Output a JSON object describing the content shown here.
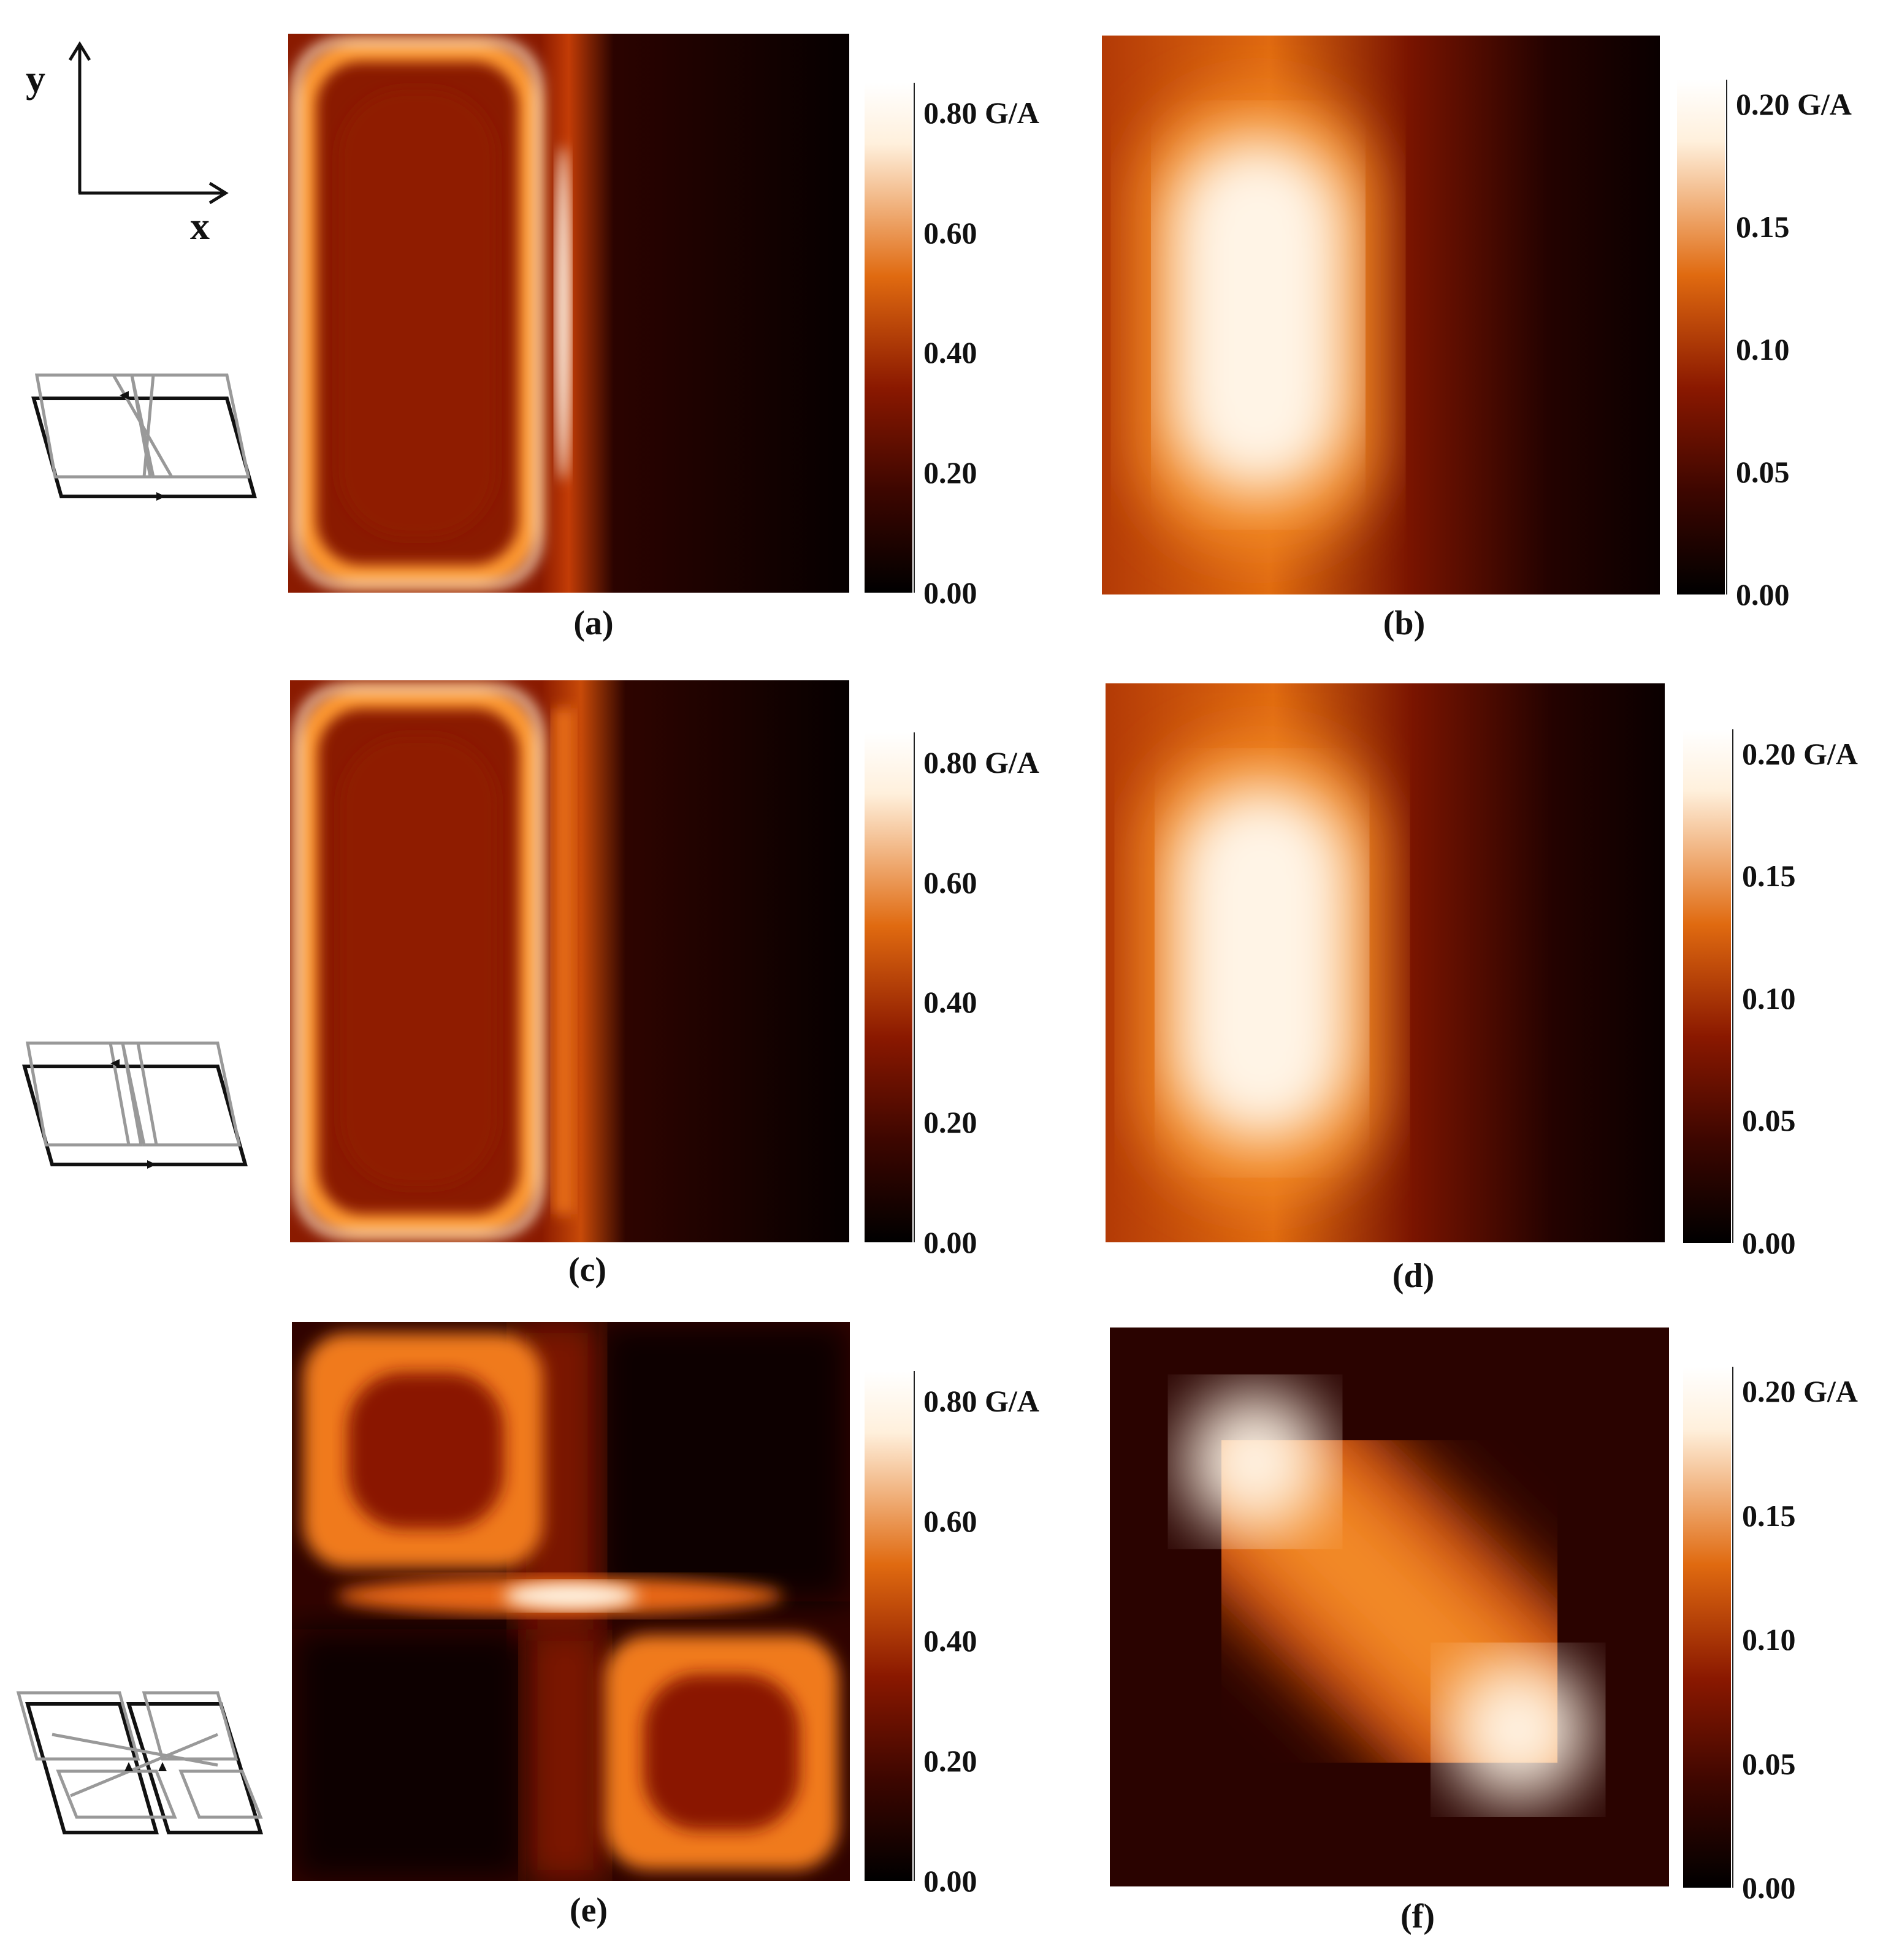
{
  "axes": {
    "x_label": "x",
    "y_label": "y"
  },
  "colorbar_left": {
    "ticks": [
      "0.00",
      "0.20",
      "0.40",
      "0.60",
      "0.80 G/A"
    ],
    "values": [
      0.0,
      0.2,
      0.4,
      0.6,
      0.8
    ],
    "max": 0.85
  },
  "colorbar_right": {
    "ticks": [
      "0.00",
      "0.05",
      "0.10",
      "0.15",
      "0.20 G/A"
    ],
    "values": [
      0.0,
      0.05,
      0.1,
      0.15,
      0.2
    ],
    "max": 0.21
  },
  "panels": [
    {
      "label": "(a)"
    },
    {
      "label": "(b)"
    },
    {
      "label": "(c)"
    },
    {
      "label": "(d)"
    },
    {
      "label": "(e)"
    },
    {
      "label": "(f)"
    }
  ],
  "chart_data": [
    {
      "type": "heatmap",
      "panel": "(a)",
      "colormap": "black-red-orange-white",
      "vmin": 0.0,
      "vmax": 0.8,
      "colorbar_unit": "G/A"
    },
    {
      "type": "heatmap",
      "panel": "(b)",
      "colormap": "black-red-orange-white",
      "vmin": 0.0,
      "vmax": 0.2,
      "colorbar_unit": "G/A"
    },
    {
      "type": "heatmap",
      "panel": "(c)",
      "colormap": "black-red-orange-white",
      "vmin": 0.0,
      "vmax": 0.8,
      "colorbar_unit": "G/A"
    },
    {
      "type": "heatmap",
      "panel": "(d)",
      "colormap": "black-red-orange-white",
      "vmin": 0.0,
      "vmax": 0.2,
      "colorbar_unit": "G/A"
    },
    {
      "type": "heatmap",
      "panel": "(e)",
      "colormap": "black-red-orange-white",
      "vmin": 0.0,
      "vmax": 0.8,
      "colorbar_unit": "G/A"
    },
    {
      "type": "heatmap",
      "panel": "(f)",
      "colormap": "black-red-orange-white",
      "vmin": 0.0,
      "vmax": 0.2,
      "colorbar_unit": "G/A"
    }
  ]
}
